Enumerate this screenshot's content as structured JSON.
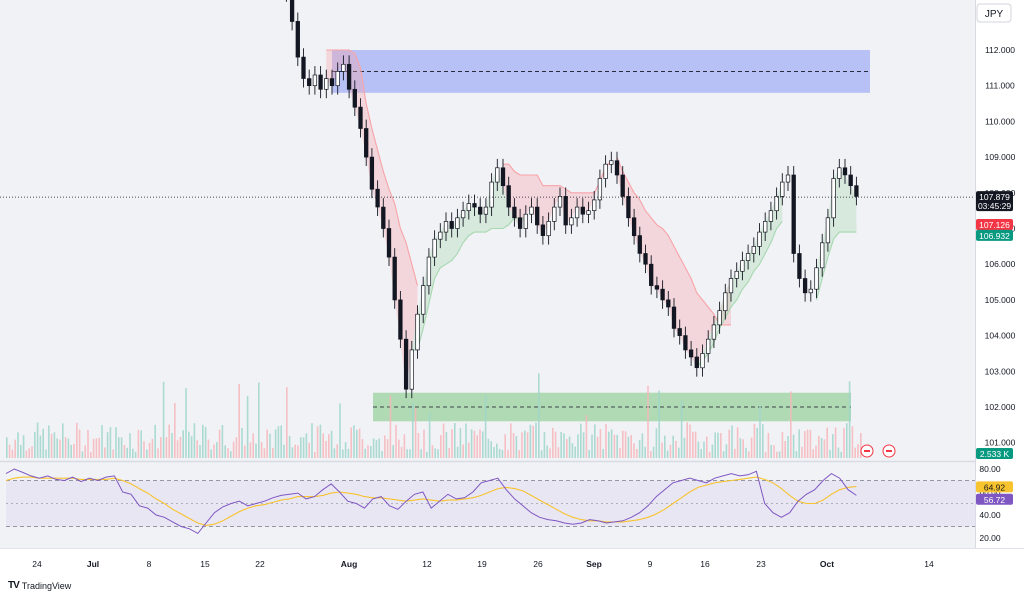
{
  "currency": "JPY",
  "brand": {
    "logo": "TV",
    "name": "TradingView"
  },
  "colors": {
    "up": "#089981",
    "down": "#f23645",
    "candle": "#131722",
    "resistance_zone": "#aeb9f6",
    "support_zone": "#a5d6a7",
    "rsi": "#7e57c2",
    "rsi_ma": "#f7c32e",
    "rsi_band": "#e6e1f3",
    "stop_red": "#f7a3a8",
    "stop_green": "#a6d8b0",
    "price_tag": "#131722",
    "red_tag": "#f23645",
    "green_tag": "#089981",
    "volume_tag": "#089981"
  },
  "chart_data": {
    "type": "candlestick",
    "price_axis": {
      "range": [
        100.8,
        115.0
      ],
      "ticks": [
        "112.000",
        "111.000",
        "110.000",
        "109.000",
        "108.000",
        "107.000",
        "106.000",
        "105.000",
        "104.000",
        "103.000",
        "102.000",
        "101.000"
      ]
    },
    "x_axis": {
      "ticks": [
        "24",
        "Jul",
        "8",
        "15",
        "22",
        "Aug",
        "12",
        "19",
        "26",
        "Sep",
        "9",
        "16",
        "23",
        "Oct",
        "14"
      ]
    },
    "last_price": {
      "value": "107.879",
      "countdown": "03:45:29"
    },
    "indicator_tags": {
      "red": "107.126",
      "green": "106.932"
    },
    "volume_tag": "2.533 K",
    "rsi": {
      "ticks": [
        "80.00",
        "60.00",
        "40.00",
        "20.00"
      ],
      "upper": 70,
      "lower": 30,
      "rsi_value": "56.72",
      "ma_value": "64.92"
    },
    "zones": [
      {
        "kind": "resistance",
        "from": "Aug 1",
        "to": "Oct 6",
        "low": 110.8,
        "high": 112.0,
        "mid": 111.4
      },
      {
        "kind": "support",
        "from": "Aug 5",
        "to": "Oct 6",
        "low": 101.6,
        "high": 102.4,
        "mid": 102.0
      }
    ],
    "close_series": [
      114.9,
      114.3,
      113.6,
      112.8,
      111.8,
      111.2,
      111.0,
      111.3,
      110.9,
      111.2,
      111.0,
      111.4,
      111.6,
      110.9,
      110.4,
      109.8,
      109.0,
      108.1,
      107.6,
      107.0,
      106.2,
      105.0,
      103.9,
      102.5,
      103.6,
      104.6,
      105.4,
      106.2,
      106.7,
      106.9,
      107.2,
      107.0,
      107.3,
      107.5,
      107.7,
      107.6,
      107.4,
      107.6,
      108.3,
      108.7,
      108.2,
      107.6,
      107.3,
      107.0,
      107.4,
      107.6,
      107.1,
      106.8,
      107.2,
      107.6,
      107.9,
      107.1,
      107.3,
      107.6,
      107.4,
      107.5,
      107.8,
      108.4,
      108.8,
      108.9,
      108.5,
      107.9,
      107.3,
      106.8,
      106.3,
      106.0,
      105.4,
      105.3,
      105.0,
      104.8,
      104.2,
      104.0,
      103.6,
      103.4,
      103.1,
      103.5,
      103.9,
      104.3,
      104.7,
      105.2,
      105.6,
      105.8,
      106.1,
      106.3,
      106.5,
      106.9,
      107.2,
      107.5,
      107.9,
      108.3,
      108.5,
      106.3,
      105.6,
      105.2,
      105.3,
      105.9,
      106.6,
      107.3,
      108.4,
      108.7,
      108.5,
      108.2,
      107.9
    ],
    "support_stop": {
      "start": 24,
      "values": [
        103.6,
        103.6,
        104.2,
        104.9,
        105.6,
        105.9,
        106.0,
        106.1,
        106.3,
        106.6,
        106.8,
        106.9,
        106.9,
        106.9,
        107.0,
        107.0,
        107.0,
        107.1,
        107.3,
        107.3,
        107.3
      ]
    },
    "support_stop_2": {
      "start": 74,
      "values": [
        103.1,
        103.3,
        103.5,
        103.8,
        104.2,
        104.5,
        104.8,
        105.0,
        105.3,
        105.5,
        105.8,
        106.0,
        106.3,
        106.6,
        107.0,
        107.2
      ]
    },
    "support_stop_3": {
      "start": 95,
      "values": [
        105.0,
        105.6,
        106.2,
        106.7,
        106.9,
        106.9,
        106.9,
        106.9
      ]
    },
    "resistance_stop": {
      "start": 9,
      "values": [
        112.0,
        112.0,
        112.0,
        112.0,
        112.0,
        111.9,
        111.5,
        110.5,
        109.8,
        109.2,
        108.6,
        108.1,
        107.7,
        107.0,
        106.6,
        106.0,
        105.4
      ]
    },
    "resistance_stop_2": {
      "start": 40,
      "values": [
        108.8,
        108.8,
        108.6,
        108.5,
        108.5,
        108.5,
        108.5,
        108.2,
        108.2,
        108.2,
        108.2,
        108.1,
        108.0,
        108.0,
        108.0,
        108.0,
        108.0,
        108.3,
        108.7,
        108.9
      ]
    },
    "resistance_stop_3": {
      "start": 60,
      "values": [
        109.0,
        108.6,
        108.3,
        108.0,
        107.8,
        107.5,
        107.3,
        107.1,
        107.0,
        106.8,
        106.5,
        106.2,
        105.9,
        105.6,
        105.2,
        105.0,
        104.8,
        104.6,
        104.3,
        104.3,
        104.3
      ]
    },
    "rsi_series": [
      76,
      80,
      77,
      74,
      72,
      74,
      71,
      70,
      73,
      69,
      72,
      70,
      73,
      74,
      60,
      58,
      48,
      46,
      40,
      38,
      34,
      30,
      28,
      24,
      33,
      42,
      47,
      50,
      52,
      48,
      50,
      52,
      55,
      57,
      58,
      59,
      54,
      56,
      62,
      67,
      60,
      52,
      50,
      46,
      54,
      56,
      48,
      45,
      52,
      58,
      60,
      46,
      52,
      58,
      54,
      55,
      60,
      68,
      70,
      72,
      62,
      54,
      48,
      42,
      38,
      36,
      35,
      33,
      32,
      33,
      36,
      35,
      33,
      34,
      35,
      38,
      42,
      48,
      56,
      62,
      68,
      70,
      72,
      70,
      68,
      72,
      74,
      76,
      74,
      75,
      78,
      50,
      42,
      38,
      42,
      52,
      58,
      62,
      70,
      76,
      72,
      62,
      57
    ],
    "rsi_ma_series": [
      70,
      72,
      73,
      73,
      72,
      72,
      72,
      72,
      72,
      71,
      71,
      71,
      71,
      72,
      70,
      67,
      63,
      59,
      54,
      50,
      45,
      41,
      37,
      33,
      31,
      32,
      35,
      39,
      43,
      46,
      48,
      49,
      51,
      53,
      54,
      56,
      56,
      56,
      57,
      59,
      60,
      59,
      58,
      56,
      55,
      55,
      54,
      53,
      52,
      53,
      54,
      53,
      52,
      53,
      53,
      54,
      55,
      57,
      60,
      63,
      64,
      63,
      61,
      57,
      53,
      49,
      45,
      41,
      38,
      36,
      35,
      35,
      34,
      34,
      34,
      35,
      36,
      38,
      41,
      45,
      50,
      55,
      60,
      64,
      66,
      68,
      69,
      70,
      71,
      72,
      73,
      71,
      68,
      63,
      57,
      52,
      50,
      50,
      53,
      58,
      62,
      64,
      64.9
    ]
  }
}
